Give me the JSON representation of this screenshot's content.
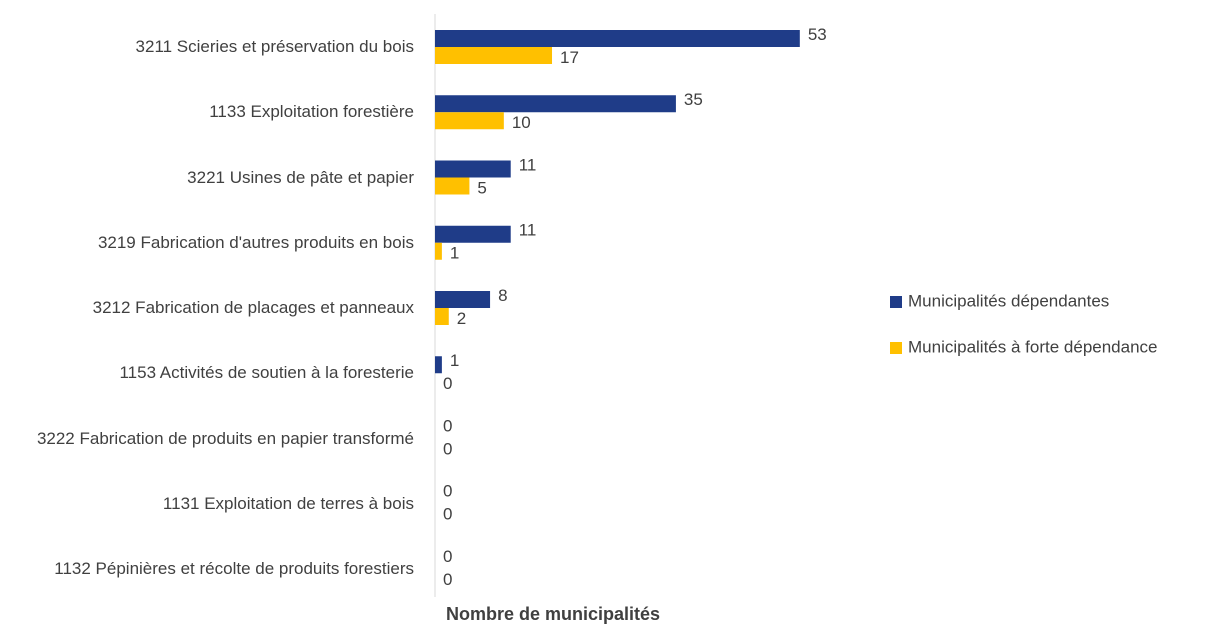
{
  "chart_data": {
    "type": "hbar",
    "x_label": "Nombre de municipalités",
    "categories": [
      "3211 Scieries et préservation du bois",
      "1133 Exploitation forestière",
      "3221 Usines de pâte et papier",
      "3219 Fabrication d'autres produits en bois",
      "3212 Fabrication de placages et panneaux",
      "1153 Activités de soutien à la foresterie",
      "3222 Fabrication de produits en papier transformé",
      "1131 Exploitation de terres à bois",
      "1132 Pépinières et récolte de produits forestiers"
    ],
    "series": [
      {
        "name": "Municipalités dépendantes",
        "color": "#1f3c88",
        "values": [
          53,
          35,
          11,
          11,
          8,
          1,
          0,
          0,
          0
        ]
      },
      {
        "name": "Municipalités à forte dépendance",
        "color": "#ffc000",
        "values": [
          17,
          10,
          5,
          1,
          2,
          0,
          0,
          0,
          0
        ]
      }
    ],
    "xlim": [
      0,
      60
    ],
    "legend": "right"
  }
}
